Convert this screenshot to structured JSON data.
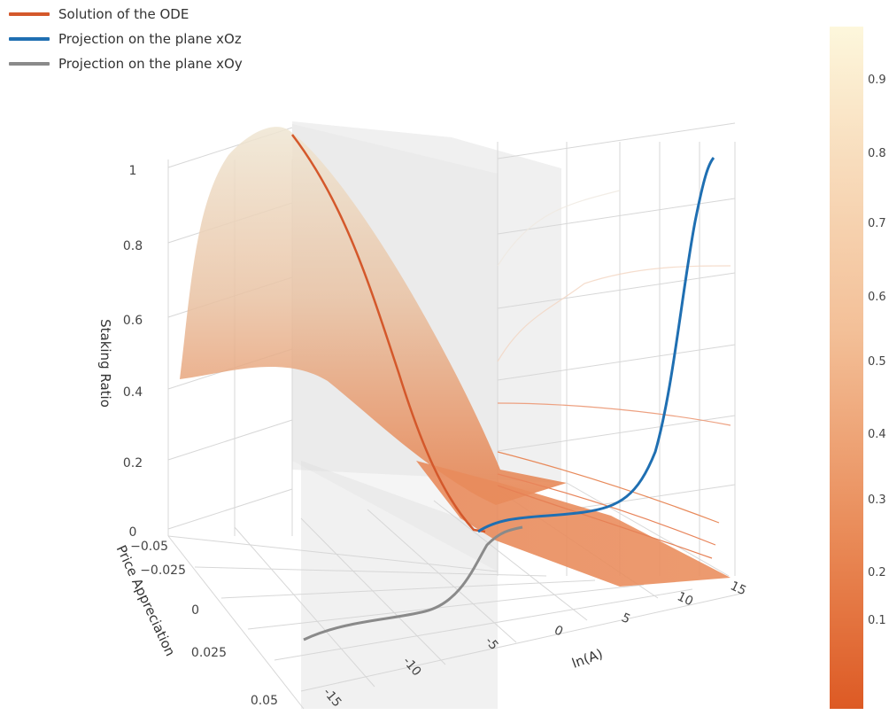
{
  "legend": {
    "items": [
      {
        "label": "Solution of the ODE",
        "color": "#d4582b"
      },
      {
        "label": "Projection on the plane xOz",
        "color": "#1f6fb2"
      },
      {
        "label": "Projection on the plane xOy",
        "color": "#8a8a8a"
      }
    ]
  },
  "colorbar": {
    "ticks": [
      "0.1",
      "0.2",
      "0.3",
      "0.4",
      "0.5",
      "0.6",
      "0.7",
      "0.8",
      "0.9"
    ],
    "color_low": "#dd5a24",
    "color_high": "#fdf7dc"
  },
  "chart_data": {
    "type": "surface3d",
    "axes": {
      "x": {
        "title": "ln(A)",
        "ticks": [
          "-15",
          "-10",
          "-5",
          "0",
          "5",
          "10",
          "15"
        ],
        "range": [
          -15,
          15
        ]
      },
      "y": {
        "title": "Price Appreciation",
        "ticks": [
          "−0.05",
          "−0.025",
          "0",
          "0.025",
          "0.05"
        ],
        "range": [
          -0.05,
          0.05
        ]
      },
      "z": {
        "title": "Staking Ratio",
        "ticks": [
          "0",
          "0.2",
          "0.4",
          "0.6",
          "0.8",
          "1"
        ],
        "range": [
          0,
          1
        ]
      }
    },
    "series": [
      {
        "name": "Solution of the ODE",
        "x": [
          -13.5,
          -11,
          -9,
          -7,
          -5,
          -3.5,
          -2,
          -1
        ],
        "y": [
          -0.048,
          -0.04,
          -0.03,
          -0.02,
          -0.01,
          -0.002,
          0.005,
          0.005
        ],
        "z": [
          1.0,
          0.95,
          0.82,
          0.62,
          0.38,
          0.17,
          0.04,
          0.0
        ]
      },
      {
        "name": "Projection on the plane xOz",
        "x": [
          -2,
          0,
          2,
          4,
          6,
          8,
          9.5,
          11,
          12.5,
          14
        ],
        "z": [
          0.0,
          0.02,
          0.05,
          0.06,
          0.08,
          0.15,
          0.35,
          0.65,
          0.9,
          1.0
        ]
      },
      {
        "name": "Projection on the plane xOy",
        "x": [
          -15,
          -13,
          -11,
          -9,
          -7,
          -5,
          -3
        ],
        "y": [
          0.05,
          0.049,
          0.047,
          0.04,
          0.02,
          0.0,
          -0.01
        ]
      }
    ],
    "grid": true,
    "legend_position": "top-left"
  }
}
